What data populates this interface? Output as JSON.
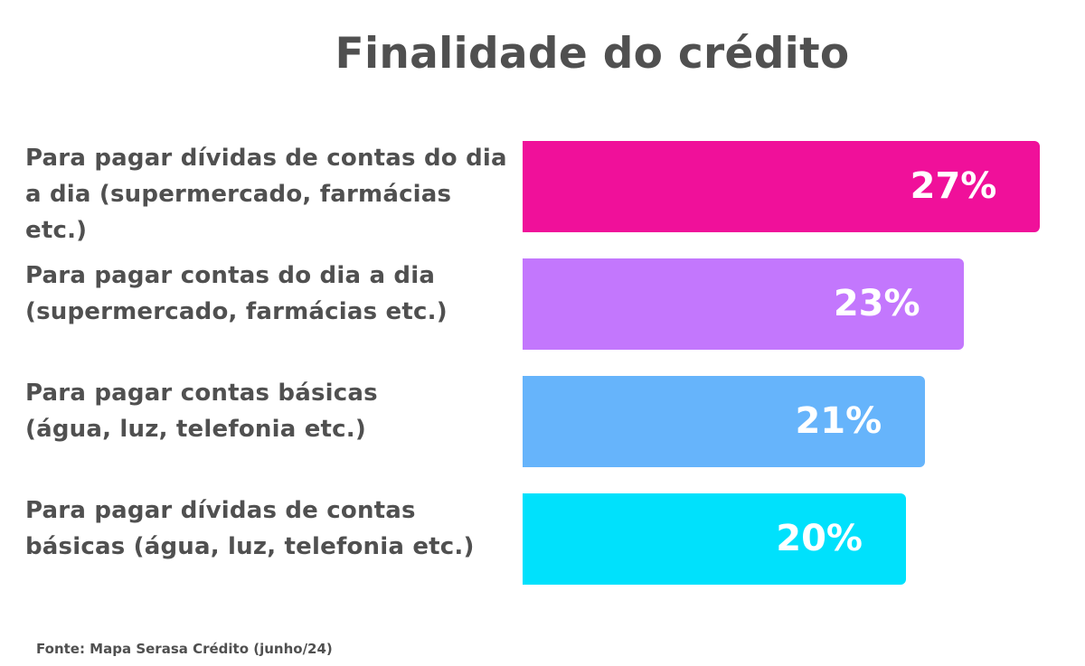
{
  "title": "Finalidade do crédito",
  "source": "Fonte: Mapa Serasa Crédito (junho/24)",
  "chart_data": {
    "type": "bar",
    "orientation": "horizontal",
    "title": "Finalidade do crédito",
    "categories": [
      [
        "Para pagar dívidas de contas do dia",
        "a dia (supermercado, farmácias etc.)"
      ],
      [
        "Para pagar contas do dia a dia",
        "(supermercado, farmácias etc.)"
      ],
      [
        "Para pagar contas básicas",
        "(água, luz, telefonia etc.)"
      ],
      [
        "Para pagar dívidas de contas",
        "básicas (água, luz, telefonia etc.)"
      ]
    ],
    "values": [
      27,
      23,
      21,
      20
    ],
    "value_labels": [
      "27%",
      "23%",
      "21%",
      "20%"
    ],
    "colors": [
      "#f0109a",
      "#c377fd",
      "#66b4fb",
      "#00e1fc"
    ],
    "grid": false,
    "legend": "none"
  }
}
